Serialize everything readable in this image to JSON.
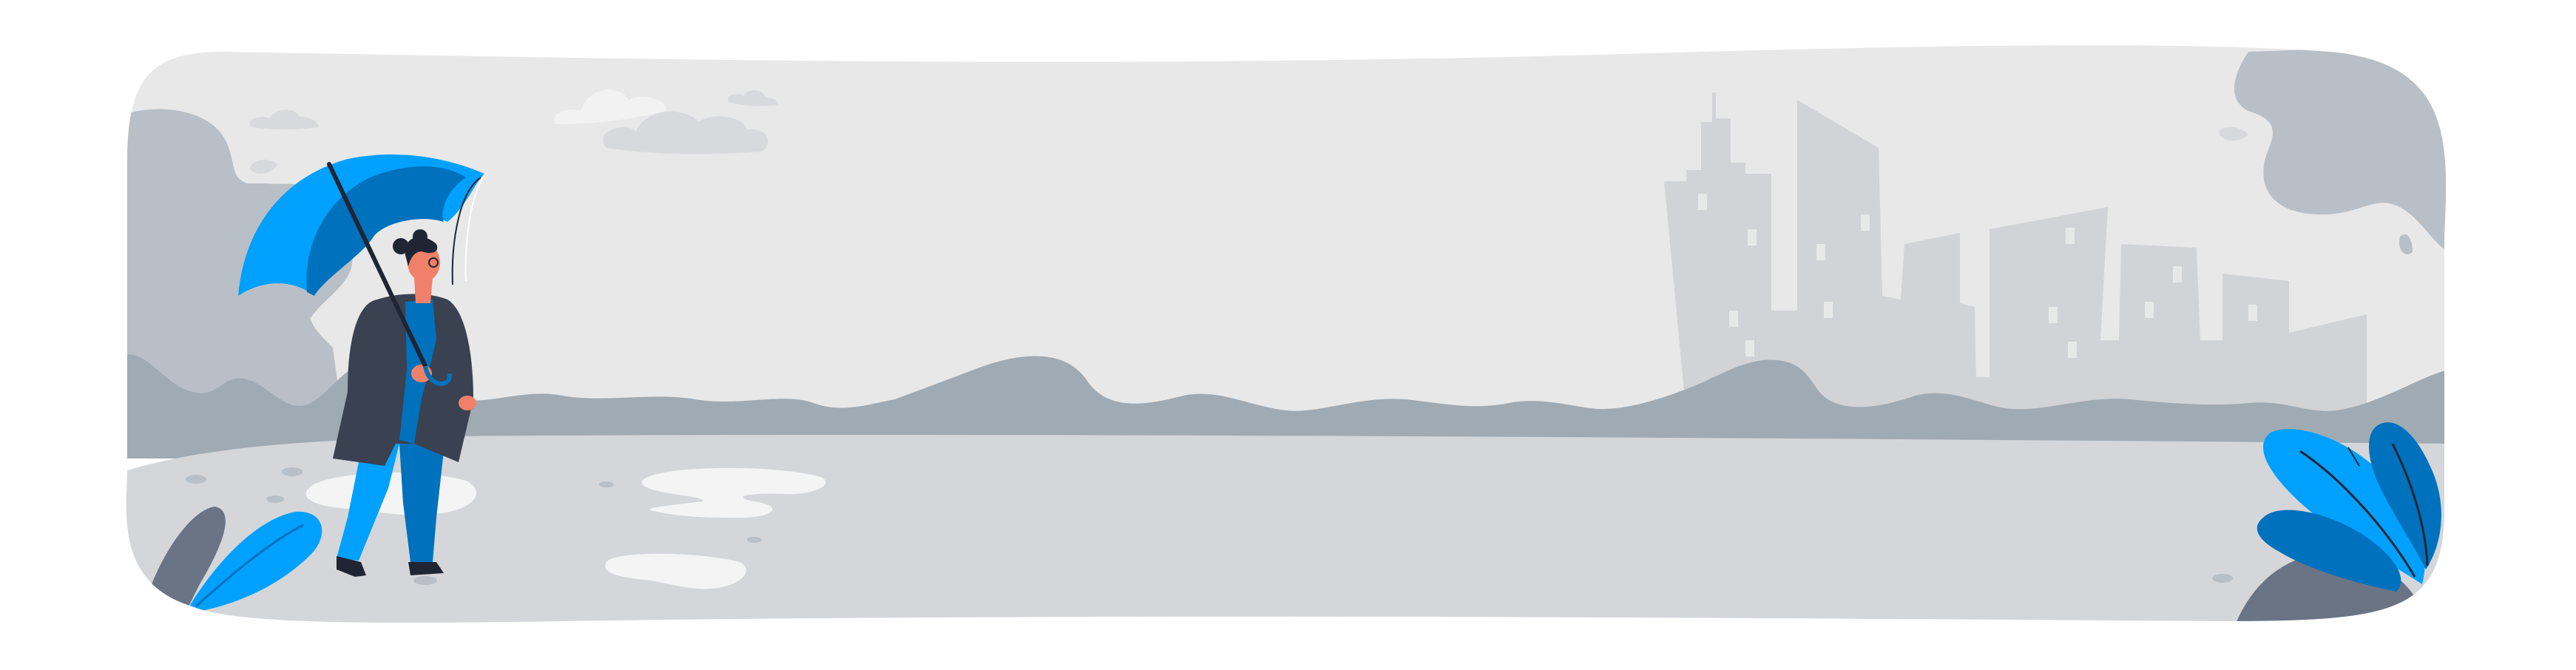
{
  "scene": {
    "palette": {
      "background": "#ffffff",
      "sky": "#e8e8e8",
      "ground": "#d4d6da",
      "hills": "#a0aab3",
      "bushes_light": "#b8bfc6",
      "bushes_dark": "#6b7485",
      "city": "#d2d3d6",
      "clouds": "#d8d9dc",
      "cloud_light": "#f2f2f2",
      "puddles": "#f4f4f4",
      "accent_blue": "#00a0ff",
      "accent_blue_dark": "#0071bc",
      "coat": "#3a4150",
      "skin": "#f0806a",
      "hair": "#1f2533"
    },
    "icons": [
      "umbrella-icon",
      "person-icon",
      "city-skyline-icon",
      "cloud-icon",
      "leaf-icon"
    ]
  }
}
